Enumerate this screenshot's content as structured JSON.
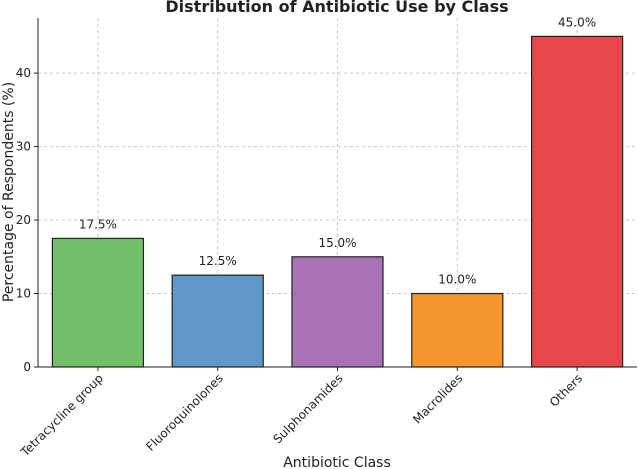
{
  "chart_data": {
    "type": "bar",
    "title": "Distribution of Antibiotic Use by Class",
    "xlabel": "Antibiotic Class",
    "ylabel": "Percentage of Respondents (%)",
    "categories": [
      "Tetracycline group",
      "Fluoroquinolones",
      "Sulphonamides",
      "Macrolides",
      "Others"
    ],
    "values": [
      17.5,
      12.5,
      15.0,
      10.0,
      45.0
    ],
    "data_labels": [
      "17.5%",
      "12.5%",
      "15.0%",
      "10.0%",
      "45.0%"
    ],
    "colors": [
      "#72bf6a",
      "#5f97c6",
      "#a972b5",
      "#f7962f",
      "#e5474a"
    ],
    "ylim": [
      0,
      47.5
    ],
    "yticks": [
      0,
      10,
      20,
      30,
      40
    ],
    "grid": true
  }
}
